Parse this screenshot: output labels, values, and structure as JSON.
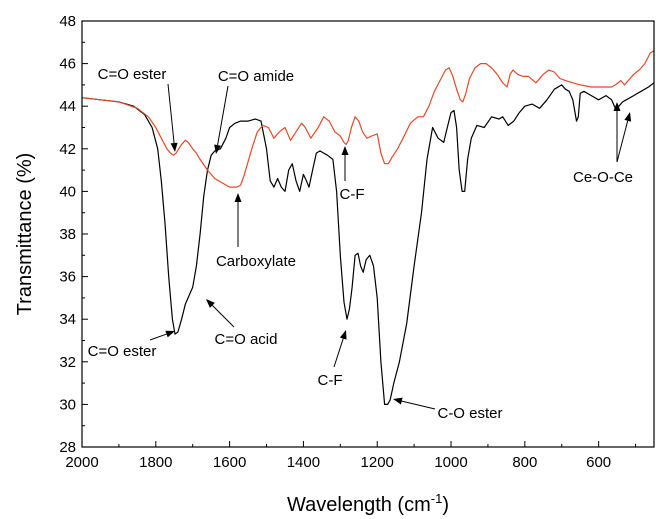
{
  "chart_data": {
    "type": "line",
    "xlabel_main": "Wavelength (cm",
    "xlabel_sup": "-1",
    "xlabel_close": ")",
    "ylabel": "Transmittance (%)",
    "xlim": [
      2000,
      450
    ],
    "ylim": [
      28,
      48
    ],
    "x_reversed": true,
    "xticks": [
      2000,
      1800,
      1600,
      1400,
      1200,
      1000,
      800,
      600
    ],
    "yticks": [
      28,
      30,
      32,
      34,
      36,
      38,
      40,
      42,
      44,
      46,
      48
    ],
    "grid": false,
    "series": [
      {
        "color": "#000000",
        "points": [
          [
            2000,
            44.4
          ],
          [
            1950,
            44.3
          ],
          [
            1900,
            44.2
          ],
          [
            1860,
            44.0
          ],
          [
            1830,
            43.6
          ],
          [
            1810,
            43.0
          ],
          [
            1795,
            42.0
          ],
          [
            1785,
            40.5
          ],
          [
            1775,
            38.5
          ],
          [
            1765,
            36.0
          ],
          [
            1755,
            34.0
          ],
          [
            1748,
            33.3
          ],
          [
            1740,
            33.4
          ],
          [
            1730,
            34.0
          ],
          [
            1720,
            34.7
          ],
          [
            1710,
            35.1
          ],
          [
            1700,
            35.5
          ],
          [
            1690,
            36.5
          ],
          [
            1680,
            38.0
          ],
          [
            1670,
            39.8
          ],
          [
            1660,
            41.0
          ],
          [
            1650,
            41.7
          ],
          [
            1640,
            41.9
          ],
          [
            1625,
            42.0
          ],
          [
            1610,
            42.5
          ],
          [
            1600,
            43.0
          ],
          [
            1585,
            43.2
          ],
          [
            1570,
            43.3
          ],
          [
            1550,
            43.3
          ],
          [
            1530,
            43.4
          ],
          [
            1515,
            43.3
          ],
          [
            1500,
            42.0
          ],
          [
            1490,
            40.5
          ],
          [
            1480,
            40.2
          ],
          [
            1470,
            40.6
          ],
          [
            1460,
            40.2
          ],
          [
            1450,
            40.0
          ],
          [
            1440,
            41.0
          ],
          [
            1430,
            41.3
          ],
          [
            1420,
            40.5
          ],
          [
            1410,
            40.0
          ],
          [
            1400,
            40.8
          ],
          [
            1392,
            40.5
          ],
          [
            1385,
            40.2
          ],
          [
            1375,
            41.0
          ],
          [
            1365,
            41.8
          ],
          [
            1355,
            41.9
          ],
          [
            1345,
            41.8
          ],
          [
            1335,
            41.7
          ],
          [
            1320,
            41.5
          ],
          [
            1310,
            40.0
          ],
          [
            1300,
            37.0
          ],
          [
            1290,
            34.8
          ],
          [
            1282,
            34.0
          ],
          [
            1275,
            34.5
          ],
          [
            1268,
            35.5
          ],
          [
            1260,
            37.0
          ],
          [
            1252,
            37.1
          ],
          [
            1245,
            36.5
          ],
          [
            1238,
            36.2
          ],
          [
            1230,
            36.8
          ],
          [
            1220,
            37.0
          ],
          [
            1210,
            36.5
          ],
          [
            1200,
            35.0
          ],
          [
            1190,
            32.0
          ],
          [
            1180,
            30.0
          ],
          [
            1172,
            30.0
          ],
          [
            1165,
            30.2
          ],
          [
            1155,
            31.0
          ],
          [
            1140,
            32.0
          ],
          [
            1120,
            33.8
          ],
          [
            1100,
            36.5
          ],
          [
            1080,
            39.0
          ],
          [
            1065,
            41.5
          ],
          [
            1050,
            43.0
          ],
          [
            1035,
            42.5
          ],
          [
            1020,
            42.3
          ],
          [
            1010,
            43.0
          ],
          [
            1000,
            43.7
          ],
          [
            992,
            43.8
          ],
          [
            985,
            43.0
          ],
          [
            978,
            41.0
          ],
          [
            970,
            40.0
          ],
          [
            963,
            40.0
          ],
          [
            955,
            41.5
          ],
          [
            945,
            42.5
          ],
          [
            930,
            43.1
          ],
          [
            910,
            43.0
          ],
          [
            890,
            43.5
          ],
          [
            870,
            43.4
          ],
          [
            860,
            43.5
          ],
          [
            845,
            43.1
          ],
          [
            830,
            43.3
          ],
          [
            815,
            43.7
          ],
          [
            800,
            44.0
          ],
          [
            780,
            44.1
          ],
          [
            760,
            43.9
          ],
          [
            740,
            44.3
          ],
          [
            720,
            44.8
          ],
          [
            700,
            45.0
          ],
          [
            690,
            44.8
          ],
          [
            680,
            44.7
          ],
          [
            670,
            44.3
          ],
          [
            660,
            43.3
          ],
          [
            655,
            43.5
          ],
          [
            650,
            44.6
          ],
          [
            640,
            44.7
          ],
          [
            620,
            44.5
          ],
          [
            600,
            44.3
          ],
          [
            580,
            44.5
          ],
          [
            565,
            44.3
          ],
          [
            555,
            43.9
          ],
          [
            545,
            44.0
          ],
          [
            535,
            44.2
          ],
          [
            525,
            44.3
          ],
          [
            505,
            44.5
          ],
          [
            485,
            44.7
          ],
          [
            465,
            44.9
          ],
          [
            450,
            45.1
          ]
        ]
      },
      {
        "color": "#e34a2a",
        "points": [
          [
            2000,
            44.4
          ],
          [
            1950,
            44.3
          ],
          [
            1900,
            44.2
          ],
          [
            1850,
            43.9
          ],
          [
            1820,
            43.5
          ],
          [
            1800,
            43.0
          ],
          [
            1785,
            42.5
          ],
          [
            1770,
            42.0
          ],
          [
            1760,
            41.8
          ],
          [
            1752,
            41.7
          ],
          [
            1745,
            41.8
          ],
          [
            1738,
            42.0
          ],
          [
            1730,
            42.2
          ],
          [
            1720,
            42.4
          ],
          [
            1712,
            42.3
          ],
          [
            1700,
            42.0
          ],
          [
            1690,
            41.8
          ],
          [
            1680,
            41.5
          ],
          [
            1660,
            41.0
          ],
          [
            1640,
            40.6
          ],
          [
            1620,
            40.4
          ],
          [
            1600,
            40.2
          ],
          [
            1580,
            40.2
          ],
          [
            1570,
            40.3
          ],
          [
            1560,
            40.8
          ],
          [
            1540,
            42.0
          ],
          [
            1525,
            42.8
          ],
          [
            1510,
            43.1
          ],
          [
            1495,
            43.0
          ],
          [
            1480,
            42.5
          ],
          [
            1465,
            42.8
          ],
          [
            1450,
            43.0
          ],
          [
            1435,
            42.4
          ],
          [
            1420,
            42.8
          ],
          [
            1405,
            43.2
          ],
          [
            1395,
            43.0
          ],
          [
            1380,
            42.5
          ],
          [
            1360,
            43.0
          ],
          [
            1345,
            43.5
          ],
          [
            1330,
            43.3
          ],
          [
            1315,
            42.8
          ],
          [
            1300,
            42.6
          ],
          [
            1290,
            42.3
          ],
          [
            1284,
            42.2
          ],
          [
            1278,
            42.4
          ],
          [
            1270,
            43.0
          ],
          [
            1260,
            43.5
          ],
          [
            1250,
            43.3
          ],
          [
            1240,
            42.8
          ],
          [
            1228,
            42.5
          ],
          [
            1215,
            42.6
          ],
          [
            1200,
            42.7
          ],
          [
            1190,
            41.8
          ],
          [
            1180,
            41.3
          ],
          [
            1170,
            41.3
          ],
          [
            1160,
            41.6
          ],
          [
            1145,
            42.0
          ],
          [
            1130,
            42.5
          ],
          [
            1110,
            43.2
          ],
          [
            1090,
            43.5
          ],
          [
            1075,
            43.5
          ],
          [
            1060,
            44.0
          ],
          [
            1045,
            44.7
          ],
          [
            1030,
            45.2
          ],
          [
            1015,
            45.7
          ],
          [
            1005,
            45.8
          ],
          [
            995,
            45.4
          ],
          [
            985,
            44.8
          ],
          [
            975,
            44.3
          ],
          [
            968,
            44.2
          ],
          [
            960,
            44.6
          ],
          [
            950,
            45.3
          ],
          [
            935,
            45.8
          ],
          [
            920,
            46.0
          ],
          [
            905,
            46.0
          ],
          [
            890,
            45.8
          ],
          [
            875,
            45.5
          ],
          [
            860,
            45.1
          ],
          [
            848,
            44.9
          ],
          [
            840,
            45.5
          ],
          [
            832,
            45.7
          ],
          [
            820,
            45.5
          ],
          [
            805,
            45.4
          ],
          [
            790,
            45.4
          ],
          [
            770,
            45.1
          ],
          [
            750,
            45.5
          ],
          [
            735,
            45.7
          ],
          [
            720,
            45.6
          ],
          [
            705,
            45.3
          ],
          [
            690,
            45.2
          ],
          [
            670,
            45.1
          ],
          [
            650,
            45.0
          ],
          [
            620,
            44.9
          ],
          [
            600,
            44.9
          ],
          [
            580,
            44.9
          ],
          [
            565,
            44.9
          ],
          [
            555,
            45.0
          ],
          [
            540,
            45.2
          ],
          [
            530,
            45.0
          ],
          [
            520,
            45.2
          ],
          [
            505,
            45.5
          ],
          [
            490,
            45.7
          ],
          [
            475,
            46.0
          ],
          [
            460,
            46.5
          ],
          [
            450,
            46.6
          ]
        ]
      }
    ],
    "annotations": [
      {
        "text": "C=O ester",
        "align": "top"
      },
      {
        "text": "C=O amide",
        "align": "top"
      },
      {
        "text": "Carboxylate",
        "align": "below"
      },
      {
        "text": "C-F",
        "align": "below"
      },
      {
        "text": "Ce-O-Ce",
        "align": "below"
      },
      {
        "text": "C=O acid",
        "align": "below"
      },
      {
        "text": "C=O ester",
        "align": "below"
      },
      {
        "text": "C-F",
        "align": "below"
      },
      {
        "text": "C-O ester",
        "align": "below"
      }
    ]
  }
}
